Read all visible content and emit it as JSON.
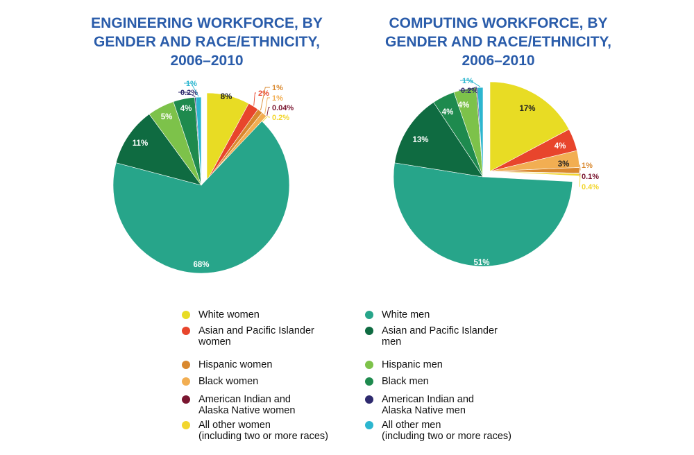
{
  "chart_data": [
    {
      "type": "pie",
      "title_lines": [
        "ENGINEERING WORKFORCE, BY",
        "GENDER AND RACE/ETHNICITY,",
        "2006–2010"
      ],
      "slices": [
        {
          "key": "white_women",
          "value": 8,
          "label": "8%"
        },
        {
          "key": "asian_women",
          "value": 2,
          "label": "2%"
        },
        {
          "key": "hispanic_women",
          "value": 1,
          "label": "1%"
        },
        {
          "key": "black_women",
          "value": 1,
          "label": "1%"
        },
        {
          "key": "native_women",
          "value": 0.04,
          "label": "0.04%"
        },
        {
          "key": "other_women",
          "value": 0.2,
          "label": "0.2%"
        },
        {
          "key": "white_men",
          "value": 68,
          "label": "68%"
        },
        {
          "key": "asian_men",
          "value": 11,
          "label": "11%"
        },
        {
          "key": "hispanic_men",
          "value": 5,
          "label": "5%"
        },
        {
          "key": "black_men",
          "value": 4,
          "label": "4%"
        },
        {
          "key": "native_men",
          "value": 0.2,
          "label": "0.2%"
        },
        {
          "key": "other_men",
          "value": 1,
          "label": "1%"
        }
      ],
      "exploded_group": "women"
    },
    {
      "type": "pie",
      "title_lines": [
        "COMPUTING WORKFORCE, BY",
        "GENDER AND RACE/ETHNICITY,",
        "2006–2010"
      ],
      "slices": [
        {
          "key": "white_women",
          "value": 17,
          "label": "17%"
        },
        {
          "key": "asian_women",
          "value": 4,
          "label": "4%"
        },
        {
          "key": "black_women",
          "value": 3,
          "label": "3%"
        },
        {
          "key": "hispanic_women",
          "value": 1,
          "label": "1%"
        },
        {
          "key": "native_women",
          "value": 0.1,
          "label": "0.1%"
        },
        {
          "key": "other_women",
          "value": 0.4,
          "label": "0.4%"
        },
        {
          "key": "white_men",
          "value": 51,
          "label": "51%"
        },
        {
          "key": "asian_men",
          "value": 13,
          "label": "13%"
        },
        {
          "key": "black_men",
          "value": 4,
          "label": "4%"
        },
        {
          "key": "hispanic_men",
          "value": 4,
          "label": "4%"
        },
        {
          "key": "native_men",
          "value": 0.2,
          "label": "0.2%"
        },
        {
          "key": "other_men",
          "value": 1,
          "label": "1%"
        }
      ],
      "exploded_group": "women"
    }
  ],
  "categories": {
    "white_women": {
      "label": "White women",
      "color": "#e8dc24"
    },
    "asian_women": {
      "label": "Asian and Pacific Islander women",
      "color": "#e8452c"
    },
    "hispanic_women": {
      "label": "Hispanic women",
      "color": "#d9882e"
    },
    "black_women": {
      "label": "Black women",
      "color": "#f2ae52"
    },
    "native_women": {
      "label": "American Indian and Alaska Native women",
      "color": "#7a1630"
    },
    "other_women": {
      "label": "All other women (including two or more races)",
      "color": "#f2d62e"
    },
    "white_men": {
      "label": "White men",
      "color": "#27a58a"
    },
    "asian_men": {
      "label": "Asian and Pacific Islander men",
      "color": "#0f6b41"
    },
    "hispanic_men": {
      "label": "Hispanic men",
      "color": "#7dc24a"
    },
    "black_men": {
      "label": "Black men",
      "color": "#1e8a4e"
    },
    "native_men": {
      "label": "American Indian and Alaska Native men",
      "color": "#2e2a6e"
    },
    "other_men": {
      "label": "All other men (including two or more races)",
      "color": "#2cb6cf"
    }
  },
  "legend": {
    "women": [
      {
        "key": "white_women",
        "lines": [
          "White women"
        ]
      },
      {
        "key": "asian_women",
        "lines": [
          "Asian and Pacific Islander",
          "women"
        ]
      },
      {
        "key": "hispanic_women",
        "lines": [
          "Hispanic women"
        ]
      },
      {
        "key": "black_women",
        "lines": [
          "Black women"
        ]
      },
      {
        "key": "native_women",
        "lines": [
          "American Indian and",
          "Alaska Native women"
        ]
      },
      {
        "key": "other_women",
        "lines": [
          "All other women",
          "(including two or more races)"
        ]
      }
    ],
    "men": [
      {
        "key": "white_men",
        "lines": [
          "White men"
        ]
      },
      {
        "key": "asian_men",
        "lines": [
          "Asian and Pacific Islander",
          "men"
        ]
      },
      {
        "key": "hispanic_men",
        "lines": [
          "Hispanic men"
        ]
      },
      {
        "key": "black_men",
        "lines": [
          "Black men"
        ]
      },
      {
        "key": "native_men",
        "lines": [
          "American Indian and",
          "Alaska Native men"
        ]
      },
      {
        "key": "other_men",
        "lines": [
          "All other men",
          "(including two or more races)"
        ]
      }
    ]
  }
}
